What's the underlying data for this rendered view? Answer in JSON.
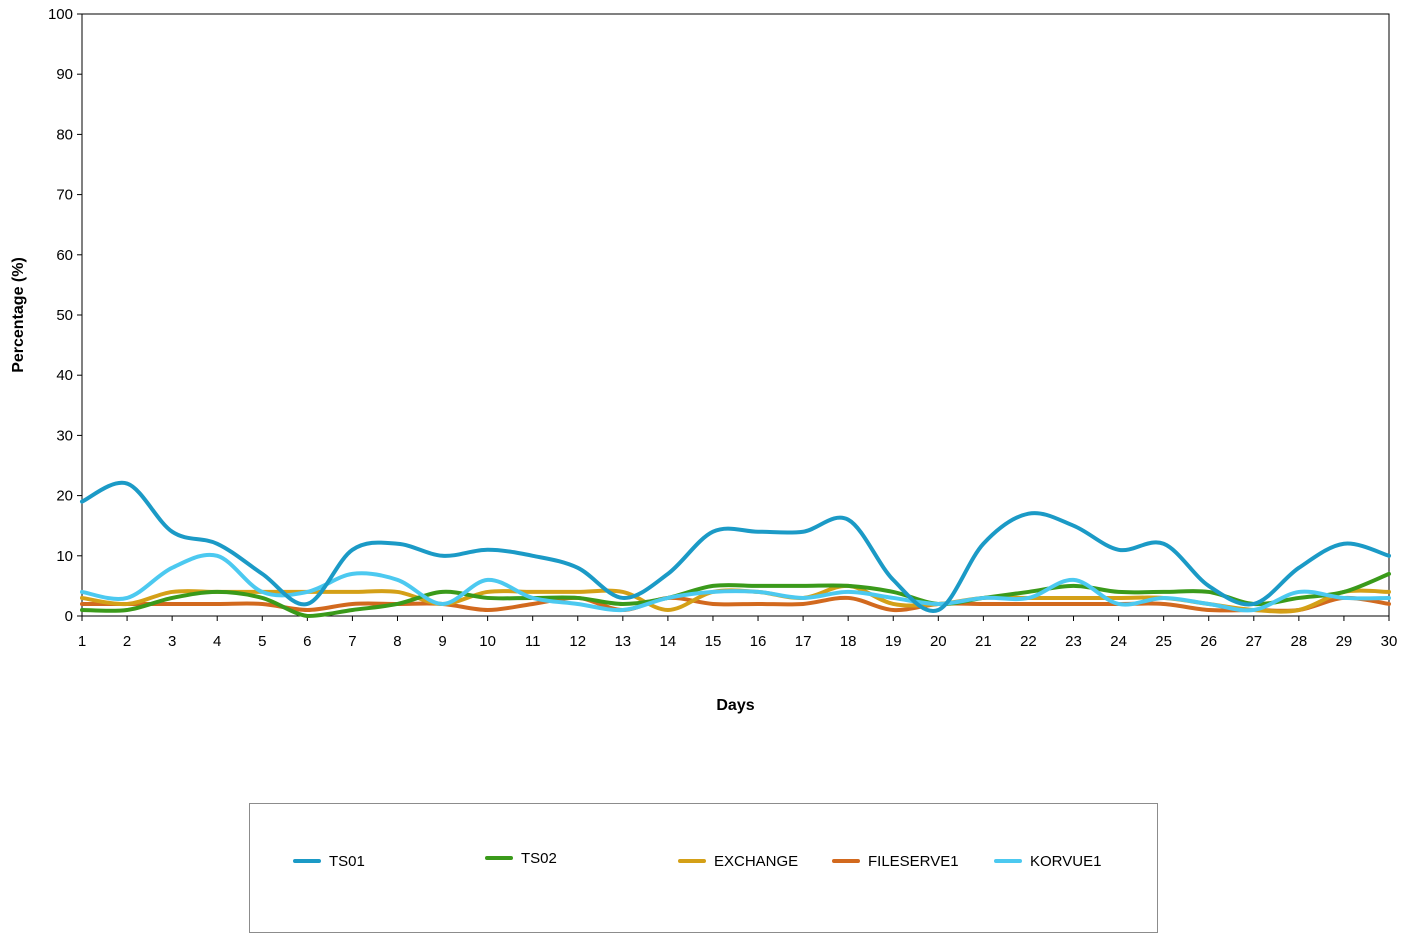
{
  "chart_data": {
    "type": "line",
    "title": "",
    "xlabel": "Days",
    "ylabel": "Percentage (%)",
    "x": [
      1,
      2,
      3,
      4,
      5,
      6,
      7,
      8,
      9,
      10,
      11,
      12,
      13,
      14,
      15,
      16,
      17,
      18,
      19,
      20,
      21,
      22,
      23,
      24,
      25,
      26,
      27,
      28,
      29,
      30
    ],
    "xlim": [
      1,
      30
    ],
    "ylim": [
      0,
      100
    ],
    "yticks": [
      0,
      10,
      20,
      30,
      40,
      50,
      60,
      70,
      80,
      90,
      100
    ],
    "grid": false,
    "legend_position": "bottom",
    "series": [
      {
        "name": "TS01",
        "color": "#1b9ac6",
        "values": [
          19,
          22,
          14,
          12,
          7,
          2,
          11,
          12,
          10,
          11,
          10,
          8,
          3,
          7,
          14,
          14,
          14,
          16,
          6,
          1,
          12,
          17,
          15,
          11,
          12,
          5,
          2,
          8,
          12,
          10
        ]
      },
      {
        "name": "TS02",
        "color": "#3a9a1a",
        "values": [
          1,
          1,
          3,
          4,
          3,
          0,
          1,
          2,
          4,
          3,
          3,
          3,
          2,
          3,
          5,
          5,
          5,
          5,
          4,
          2,
          3,
          4,
          5,
          4,
          4,
          4,
          2,
          3,
          4,
          7
        ]
      },
      {
        "name": "EXCHANGE",
        "color": "#d4a017",
        "values": [
          3,
          2,
          4,
          4,
          4,
          4,
          4,
          4,
          2,
          4,
          4,
          4,
          4,
          1,
          4,
          4,
          3,
          5,
          2,
          2,
          3,
          3,
          3,
          3,
          3,
          2,
          1,
          1,
          4,
          4
        ]
      },
      {
        "name": "FILESERVE1",
        "color": "#d2691e",
        "values": [
          2,
          2,
          2,
          2,
          2,
          1,
          2,
          2,
          2,
          1,
          2,
          3,
          1,
          3,
          2,
          2,
          2,
          3,
          1,
          2,
          2,
          2,
          2,
          2,
          2,
          1,
          1,
          1,
          3,
          2
        ]
      },
      {
        "name": "KORVUE1",
        "color": "#4cc9f0",
        "values": [
          4,
          3,
          8,
          10,
          4,
          4,
          7,
          6,
          2,
          6,
          3,
          2,
          1,
          3,
          4,
          4,
          3,
          4,
          3,
          2,
          3,
          3,
          6,
          2,
          3,
          2,
          1,
          4,
          3,
          3
        ]
      }
    ]
  }
}
